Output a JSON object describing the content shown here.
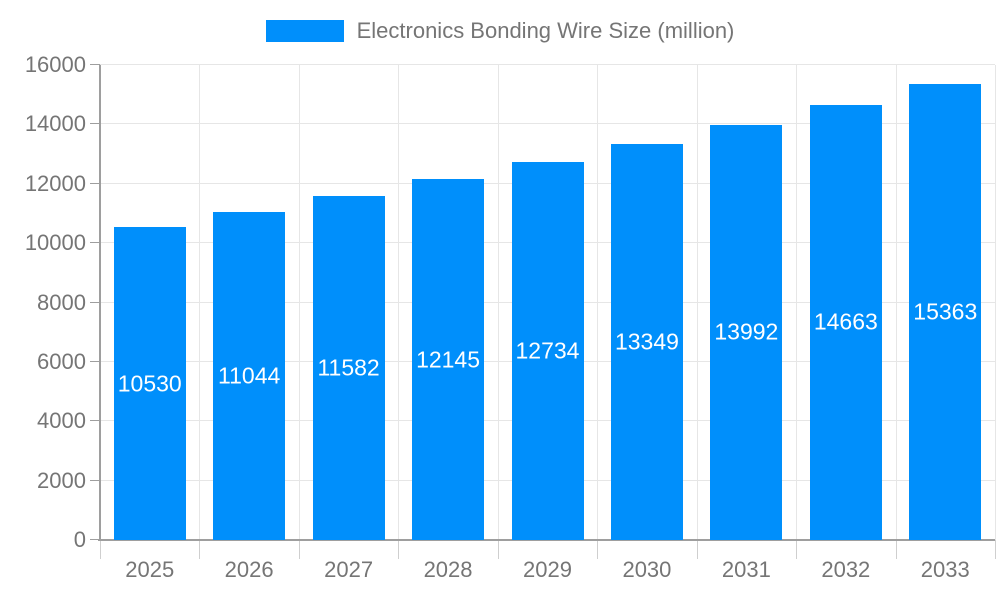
{
  "chart_data": {
    "type": "bar",
    "title": "Electronics Bonding Wire Size (million)",
    "categories": [
      "2025",
      "2026",
      "2027",
      "2028",
      "2029",
      "2030",
      "2031",
      "2032",
      "2033"
    ],
    "values": [
      10530,
      11044,
      11582,
      12145,
      12734,
      13349,
      13992,
      14663,
      15363
    ],
    "xlabel": "",
    "ylabel": "",
    "ylim": [
      0,
      16000
    ],
    "y_ticks": [
      0,
      2000,
      4000,
      6000,
      8000,
      10000,
      12000,
      14000,
      16000
    ],
    "grid": true,
    "legend_position": "top-center",
    "bar_color": "#008FFB",
    "bar_label_color": "#ffffff",
    "axis_label_color": "#757575",
    "grid_color": "#e6e6e6",
    "axis_line_color": "#9e9e9e",
    "x_tick_color": "#cfcfcf",
    "background_color": "#ffffff"
  }
}
